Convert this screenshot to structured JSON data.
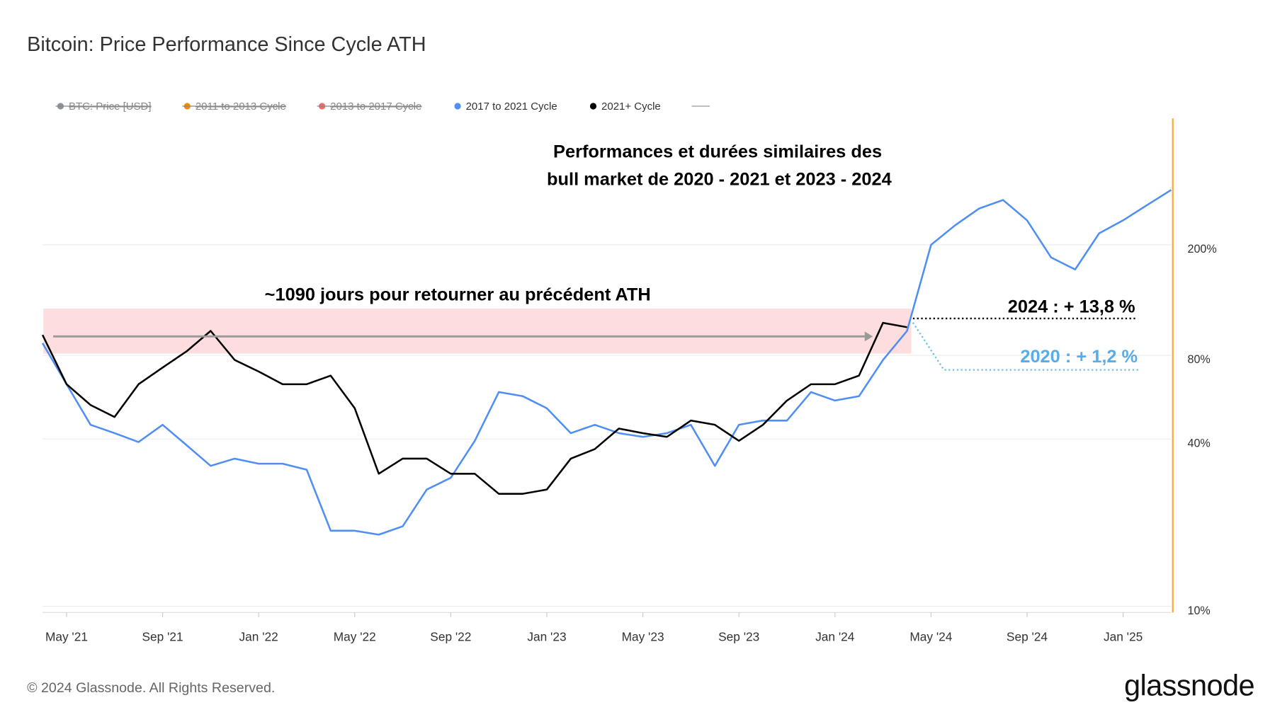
{
  "chart_data": {
    "type": "line",
    "title": "Bitcoin: Price Performance Since Cycle ATH",
    "annotations": [
      "Performances et durées similaires des",
      "bull market de 2020 - 2021 et 2023 - 2024",
      "~1090 jours pour retourner au précédent ATH",
      "2024 : + 13,8 %",
      "2020 : + 1,2 %"
    ],
    "footer": "© 2024 Glassnode. All Rights Reserved.",
    "brand": "glassnode",
    "log_scale": true,
    "grid": true,
    "legend_position": "top",
    "hidden_series": [
      {
        "name": "BTC: Price [USD]",
        "color": "#8a9499"
      },
      {
        "name": "2011 to 2013 Cycle",
        "color": "#f08c00"
      },
      {
        "name": "2013 to 2017 Cycle",
        "color": "#f06a6a"
      }
    ],
    "x": [
      "2021-04",
      "2021-05",
      "2021-06",
      "2021-07",
      "2021-08",
      "2021-09",
      "2021-10",
      "2021-11",
      "2021-12",
      "2022-01",
      "2022-02",
      "2022-03",
      "2022-04",
      "2022-05",
      "2022-06",
      "2022-07",
      "2022-08",
      "2022-09",
      "2022-10",
      "2022-11",
      "2022-12",
      "2023-01",
      "2023-02",
      "2023-03",
      "2023-04",
      "2023-05",
      "2023-06",
      "2023-07",
      "2023-08",
      "2023-09",
      "2023-10",
      "2023-11",
      "2023-12",
      "2024-01",
      "2024-02",
      "2024-03",
      "2024-04",
      "2024-05",
      "2024-06",
      "2024-07",
      "2024-08",
      "2024-09",
      "2024-10",
      "2024-11",
      "2024-12",
      "2025-01",
      "2025-02",
      "2025-03"
    ],
    "series": [
      {
        "name": "2017 to 2021 Cycle",
        "color": "#4f8ef2",
        "values": [
          88.5,
          63,
          45,
          42,
          39,
          45,
          38,
          32,
          34,
          32.6,
          32.6,
          31,
          18.7,
          18.7,
          18.1,
          19.4,
          26.3,
          29,
          39.4,
          59,
          57,
          51.6,
          42,
          45,
          42,
          40.7,
          42,
          45,
          32,
          45,
          46.6,
          46.6,
          59,
          55,
          57,
          77,
          98,
          200,
          235,
          270,
          290,
          245,
          180,
          163,
          220,
          245,
          278,
          315
        ]
      },
      {
        "name": "2021+ Cycle",
        "color": "#000000",
        "values": [
          94.8,
          63,
          53,
          48,
          63,
          72.3,
          82.7,
          98,
          77,
          70,
          63,
          63,
          67.6,
          51.6,
          30,
          34,
          34,
          30,
          30,
          25.4,
          25.4,
          26.3,
          34,
          36.8,
          43.6,
          42,
          40.7,
          46.6,
          45,
          39.4,
          45,
          55,
          63,
          63,
          67.6,
          104.8,
          101,
          null,
          null,
          null,
          null,
          null,
          null,
          null,
          null,
          null,
          null,
          null
        ]
      }
    ],
    "xlim": [
      "2021-04",
      "2025-03"
    ],
    "xticks": [
      {
        "value": "2021-05",
        "label": "May '21"
      },
      {
        "value": "2021-09",
        "label": "Sep '21"
      },
      {
        "value": "2022-01",
        "label": "Jan '22"
      },
      {
        "value": "2022-05",
        "label": "May '22"
      },
      {
        "value": "2022-09",
        "label": "Sep '22"
      },
      {
        "value": "2023-01",
        "label": "Jan '23"
      },
      {
        "value": "2023-05",
        "label": "May '23"
      },
      {
        "value": "2023-09",
        "label": "Sep '23"
      },
      {
        "value": "2024-01",
        "label": "Jan '24"
      },
      {
        "value": "2024-05",
        "label": "May '24"
      },
      {
        "value": "2024-09",
        "label": "Sep '24"
      },
      {
        "value": "2025-01",
        "label": "Jan '25"
      }
    ],
    "ylim": [
      9.5,
      570
    ],
    "yticks": [
      {
        "value": 10,
        "label": "10%"
      },
      {
        "value": 40,
        "label": "40%"
      },
      {
        "value": 80,
        "label": "80%"
      },
      {
        "value": 200,
        "label": "200%"
      }
    ]
  }
}
